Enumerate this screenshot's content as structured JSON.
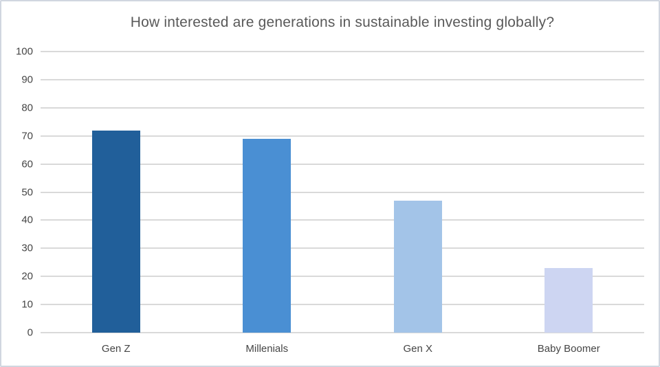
{
  "chart_data": {
    "type": "bar",
    "title": "How interested are generations in sustainable investing globally?",
    "categories": [
      "Gen Z",
      "Millenials",
      "Gen X",
      "Baby Boomer"
    ],
    "values": [
      72,
      69,
      47,
      23
    ],
    "bar_colors": [
      "#215F9A",
      "#4A8FD3",
      "#A3C4E8",
      "#CDD5F2"
    ],
    "xlabel": "",
    "ylabel": "",
    "ylim": [
      0,
      100
    ],
    "yticks": [
      0,
      10,
      20,
      30,
      40,
      50,
      60,
      70,
      80,
      90,
      100
    ],
    "grid": true,
    "legend": "none",
    "colors": {
      "gridline": "#D9D9D9",
      "title_text": "#595959",
      "tick_text": "#454545",
      "frame_border": "#D0D6E0",
      "background": "#FFFFFF"
    }
  }
}
